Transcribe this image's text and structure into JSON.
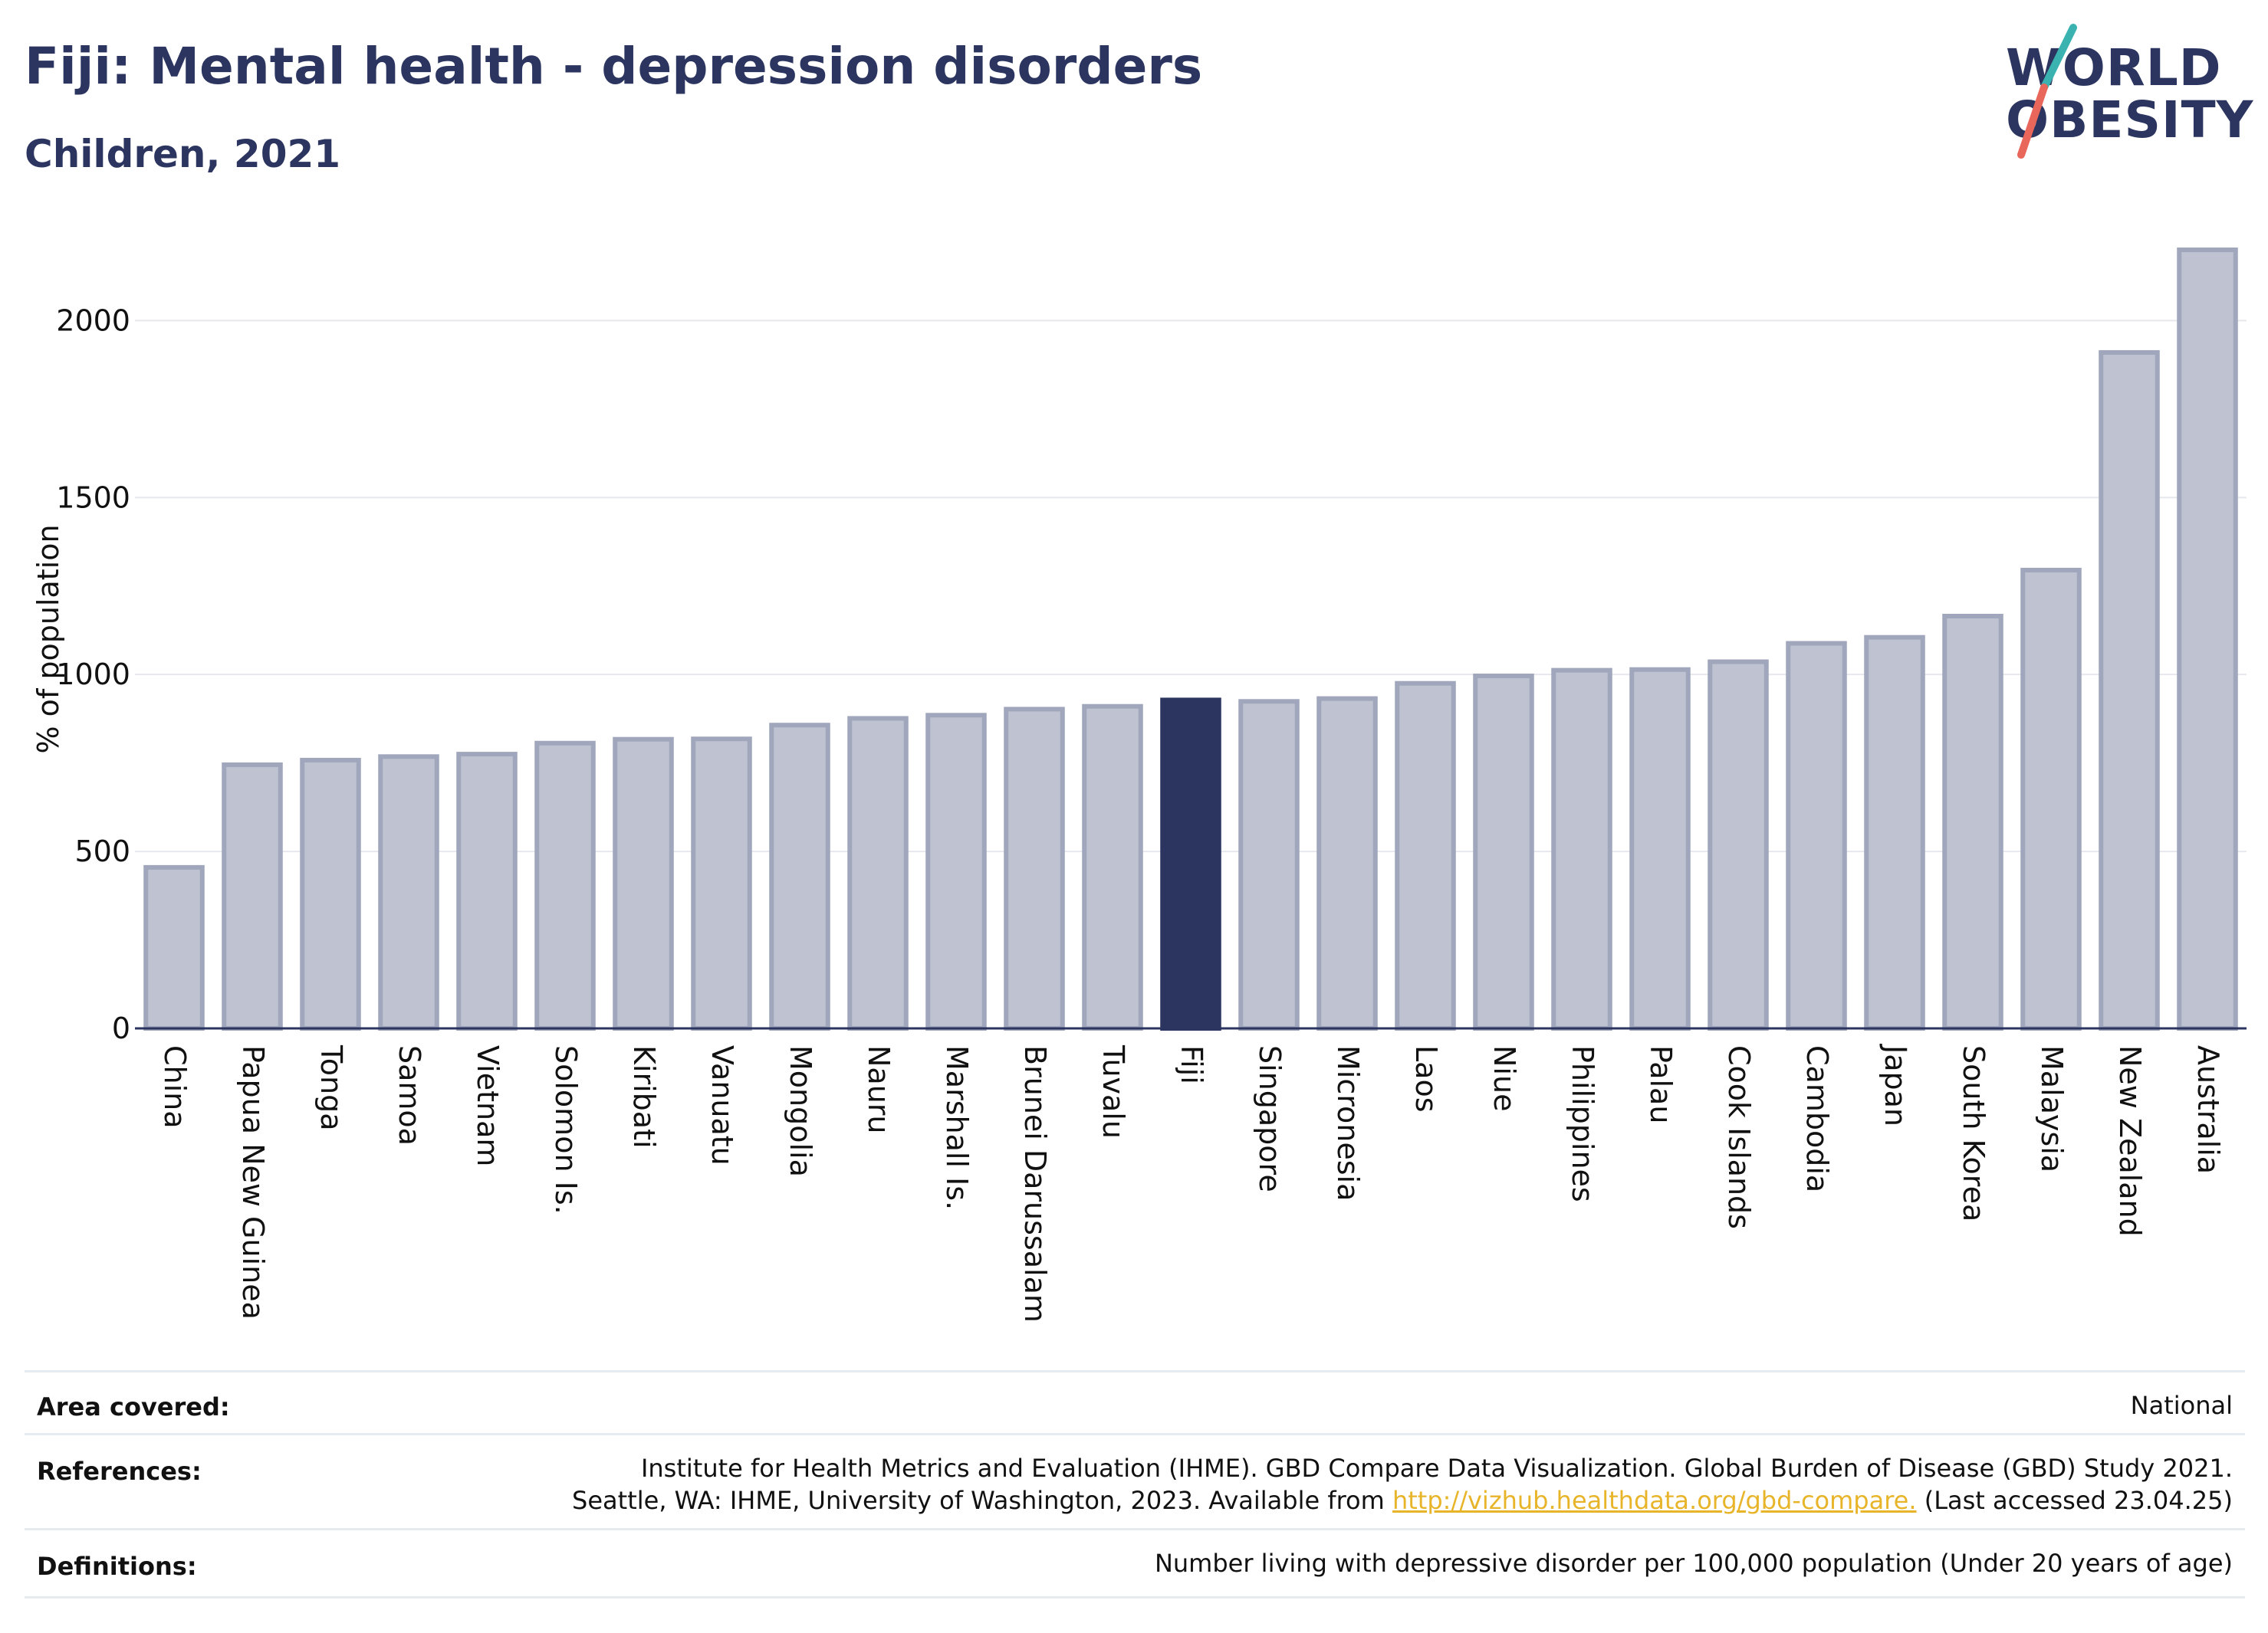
{
  "header": {
    "title": "Fiji: Mental health - depression disorders",
    "subtitle": "Children, 2021"
  },
  "logo": {
    "line1": "WORLD",
    "line2": "OBESITY",
    "colors": {
      "text": "#2b3560",
      "slash_top": "#3ab3b0",
      "slash_bottom": "#e8665a"
    }
  },
  "chart_data": {
    "type": "bar",
    "ylabel": "% of population",
    "xlabel": "",
    "ylim": [
      0,
      2200
    ],
    "yticks": [
      0,
      500,
      1000,
      1500,
      2000
    ],
    "grid": true,
    "highlight": "Fiji",
    "colors": {
      "bar": "#bfc3d1",
      "bar_edge": "#a0a6bb",
      "highlight": "#2b3560",
      "grid": "#e6e8ee",
      "axis": "#2b3560"
    },
    "categories": [
      "China",
      "Papua New Guinea",
      "Tonga",
      "Samoa",
      "Vietnam",
      "Solomon Is.",
      "Kiribati",
      "Vanuatu",
      "Mongolia",
      "Nauru",
      "Marshall Is.",
      "Brunei Darussalam",
      "Tuvalu",
      "Fiji",
      "Singapore",
      "Micronesia",
      "Laos",
      "Niue",
      "Philippines",
      "Palau",
      "Cook Islands",
      "Cambodia",
      "Japan",
      "South Korea",
      "Malaysia",
      "New Zealand",
      "Australia"
    ],
    "values": [
      455,
      745,
      758,
      768,
      775,
      806,
      817,
      818,
      857,
      876,
      885,
      902,
      910,
      928,
      924,
      932,
      975,
      996,
      1012,
      1014,
      1036,
      1088,
      1105,
      1165,
      1295,
      1910,
      2200
    ]
  },
  "footer": {
    "area_label": "Area covered:",
    "area_value": "National",
    "references_label": "References:",
    "references_line1": "Institute for Health Metrics and Evaluation (IHME). GBD Compare Data Visualization. Global Burden of Disease (GBD) Study 2021.",
    "references_line2_prefix": "Seattle, WA: IHME, University of Washington, 2023. Available from ",
    "references_link": "http://vizhub.healthdata.org/gbd-compare.",
    "references_line2_suffix": " (Last accessed 23.04.25)",
    "definitions_label": "Definitions:",
    "definitions_value": "Number living with depressive disorder per 100,000 population (Under 20 years of age)"
  }
}
